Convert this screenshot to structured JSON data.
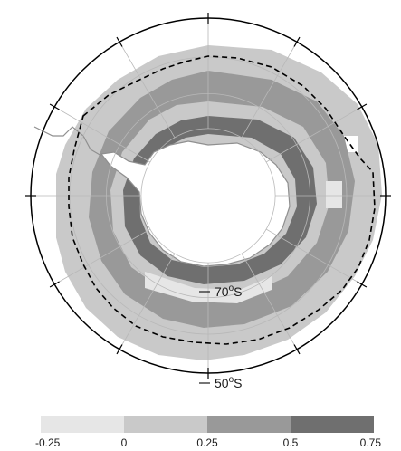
{
  "map": {
    "projection": "south-polar-stereographic",
    "latitude_labels": [
      {
        "lat": -70,
        "text": "70",
        "suffix": "S",
        "sup": "o"
      },
      {
        "lat": -50,
        "text": "50",
        "suffix": "S",
        "sup": "o"
      }
    ],
    "graticule_latitudes": [
      -70,
      -60,
      -50
    ],
    "graticule_longitudes": [
      0,
      30,
      60,
      90,
      120,
      150,
      180,
      210,
      240,
      270,
      300,
      330
    ],
    "boundary_style": "dashed",
    "colors": {
      "frame": "#000000",
      "graticule": "#b8b8b8",
      "coast": "#8f8f8f",
      "land": "#ffffff",
      "dashed_line": "#000000"
    }
  },
  "colorbar": {
    "bins": [
      {
        "from": -0.25,
        "to": 0,
        "color": "#e6e6e6"
      },
      {
        "from": 0,
        "to": 0.25,
        "color": "#c9c9c9"
      },
      {
        "from": 0.25,
        "to": 0.5,
        "color": "#999999"
      },
      {
        "from": 0.5,
        "to": 0.75,
        "color": "#6f6f6f"
      }
    ],
    "tick_labels": [
      "-0.25",
      "0",
      "0.25",
      "0.5",
      "0.75"
    ]
  }
}
